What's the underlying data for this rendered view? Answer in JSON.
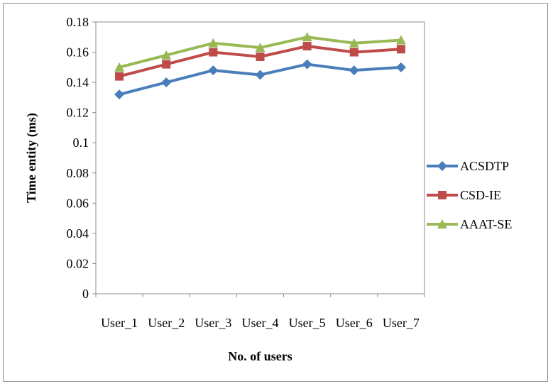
{
  "chart_data": {
    "type": "line",
    "title": "",
    "xlabel": "No. of users",
    "ylabel": "Time entity (ms)",
    "categories": [
      "User_1",
      "User_2",
      "User_3",
      "User_4",
      "User_5",
      "User_6",
      "User_7"
    ],
    "ylim": [
      0,
      0.18
    ],
    "yticks": [
      "0",
      "0.02",
      "0.04",
      "0.06",
      "0.08",
      "0.1",
      "0.12",
      "0.14",
      "0.16",
      "0.18"
    ],
    "grid": false,
    "legend_position": "right",
    "series": [
      {
        "name": "ACSDTP",
        "marker": "diamond",
        "color": "#4a7ebb",
        "values": [
          0.132,
          0.14,
          0.148,
          0.145,
          0.152,
          0.148,
          0.15
        ]
      },
      {
        "name": "CSD-IE",
        "marker": "square",
        "color": "#be4b48",
        "values": [
          0.144,
          0.152,
          0.16,
          0.157,
          0.164,
          0.16,
          0.162
        ]
      },
      {
        "name": "AAAT-SE",
        "marker": "triangle",
        "color": "#98b954",
        "values": [
          0.15,
          0.158,
          0.166,
          0.163,
          0.17,
          0.166,
          0.168
        ]
      }
    ]
  }
}
